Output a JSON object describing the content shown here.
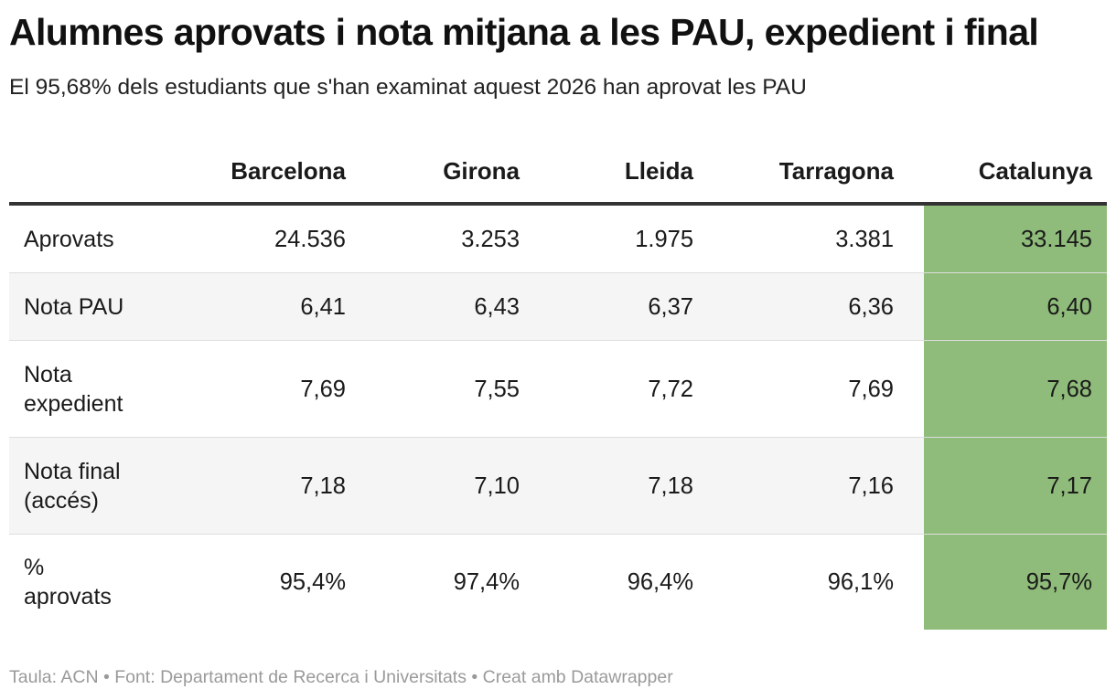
{
  "title": "Alumnes aprovats i nota mitjana a les PAU, expedient i final",
  "subtitle": "El 95,68% dels estudiants que s'han examinat aquest 2026 han aprovat les PAU",
  "footer": "Taula: ACN • Font: Departament de Recerca i Universitats • Creat amb Datawrapper",
  "colors": {
    "highlight": "#8fbc7a",
    "rule": "#333333",
    "row_shade": "#f5f5f5"
  },
  "chart_data": {
    "type": "table",
    "columns": [
      "",
      "Barcelona",
      "Girona",
      "Lleida",
      "Tarragona",
      "Catalunya"
    ],
    "highlighted_column": "Catalunya",
    "rows": [
      {
        "label": "Aprovats",
        "values": [
          "24.536",
          "3.253",
          "1.975",
          "3.381",
          "33.145"
        ]
      },
      {
        "label": "Nota PAU",
        "values": [
          "6,41",
          "6,43",
          "6,37",
          "6,36",
          "6,40"
        ]
      },
      {
        "label": "Nota expedient",
        "label_lines": [
          "Nota",
          "expedient"
        ],
        "values": [
          "7,69",
          "7,55",
          "7,72",
          "7,69",
          "7,68"
        ]
      },
      {
        "label": "Nota final (accés)",
        "label_lines": [
          "Nota final",
          "(accés)"
        ],
        "values": [
          "7,18",
          "7,10",
          "7,18",
          "7,16",
          "7,17"
        ]
      },
      {
        "label": "% aprovats",
        "label_lines": [
          "%",
          "aprovats"
        ],
        "values": [
          "95,4%",
          "97,4%",
          "96,4%",
          "96,1%",
          "95,7%"
        ]
      }
    ]
  }
}
